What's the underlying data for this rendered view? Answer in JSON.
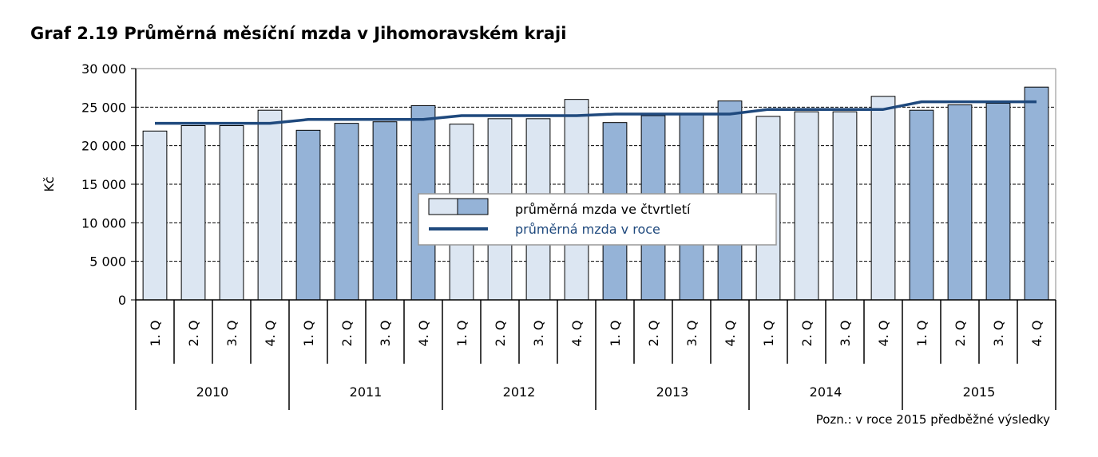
{
  "page": {
    "title": "Graf 2.19 Průměrná měsíční mzda v Jihomoravském kraji",
    "note": "Pozn.: v roce 2015 předběžné výsledky"
  },
  "chart_data": {
    "type": "bar",
    "ylabel": "Kč",
    "ylim": [
      0,
      30000
    ],
    "ytick_values": [
      0,
      5000,
      10000,
      15000,
      20000,
      25000,
      30000
    ],
    "ytick_labels": [
      "0",
      "5 000",
      "10 000",
      "15 000",
      "20 000",
      "25 000",
      "30 000"
    ],
    "gridlines": "dashed",
    "legend_position": "center",
    "legend": {
      "bar_label": "průměrná mzda ve čtvrtletí",
      "line_label": "průměrná mzda v roce"
    },
    "years": [
      "2010",
      "2011",
      "2012",
      "2013",
      "2014",
      "2015"
    ],
    "quarters": [
      "1. Q",
      "2. Q",
      "3. Q",
      "4. Q"
    ],
    "colors": {
      "light_bar": "#dce6f2",
      "dark_bar": "#95b3d7",
      "line": "#1f497d",
      "grid": "#000000"
    },
    "series": [
      {
        "name": "průměrná mzda ve čtvrtletí",
        "type": "bar",
        "values": [
          21900,
          22600,
          22600,
          24600,
          22000,
          22900,
          23100,
          25200,
          22800,
          23500,
          23500,
          26000,
          23000,
          23900,
          24100,
          25800,
          23800,
          24400,
          24400,
          26400,
          24600,
          25300,
          25500,
          27600
        ],
        "shade_by_year": [
          "light",
          "dark",
          "light",
          "dark",
          "light",
          "dark"
        ]
      },
      {
        "name": "průměrná mzda v roce",
        "type": "line",
        "values": [
          22900,
          22900,
          22900,
          22900,
          23400,
          23400,
          23400,
          23400,
          23900,
          23900,
          23900,
          23900,
          24100,
          24100,
          24100,
          24100,
          24700,
          24700,
          24700,
          24700,
          25700,
          25700,
          25700,
          25700
        ]
      }
    ]
  }
}
